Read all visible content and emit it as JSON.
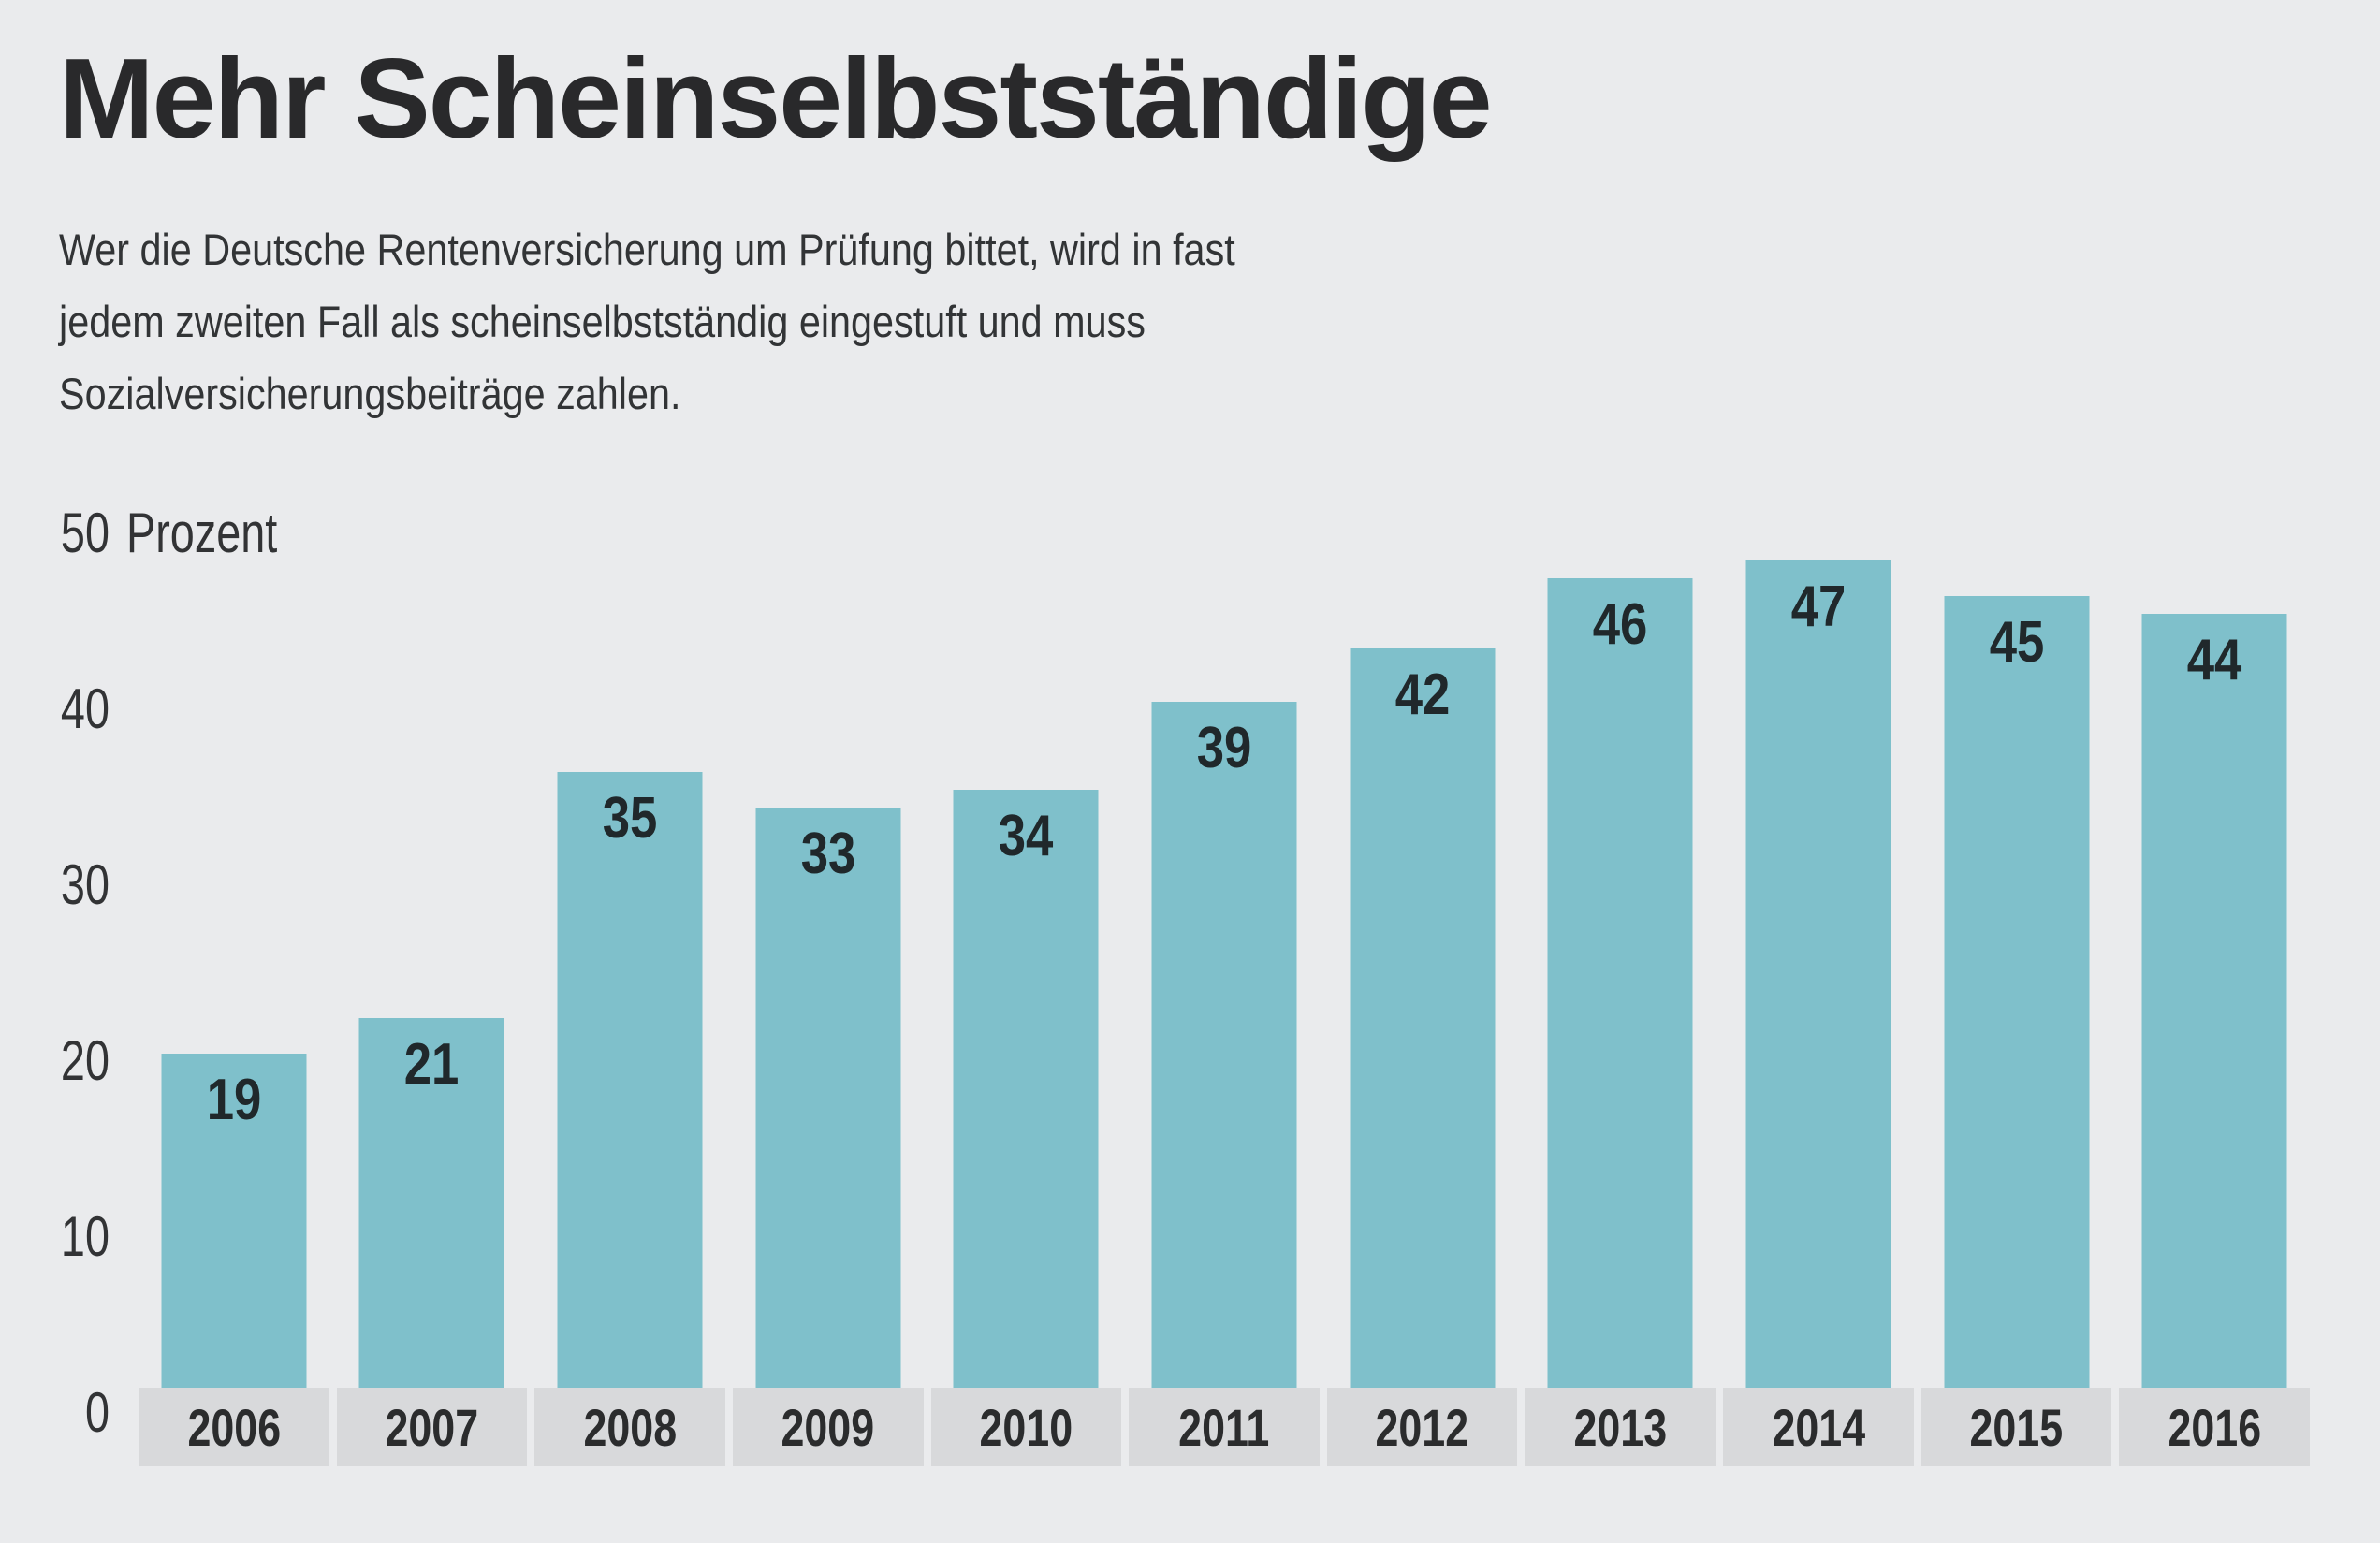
{
  "header": {
    "title": "Mehr Scheinselbstständige",
    "subtitle_lines": [
      "Wer die Deutsche Rentenversicherung um Prüfung bittet, wird in fast",
      "jedem zweiten Fall als scheinselbstständig eingestuft und muss",
      "Sozialversicherungsbeiträge zahlen."
    ]
  },
  "chart_data": {
    "type": "bar",
    "title": "Mehr Scheinselbstständige",
    "subtitle": "Wer die Deutsche Rentenversicherung um Prüfung bittet, wird in fast jedem zweiten Fall als scheinselbstständig eingestuft und muss Sozialversicherungsbeiträge zahlen.",
    "categories": [
      "2006",
      "2007",
      "2008",
      "2009",
      "2010",
      "2011",
      "2012",
      "2013",
      "2014",
      "2015",
      "2016"
    ],
    "values": [
      19,
      21,
      35,
      33,
      34,
      39,
      42,
      46,
      47,
      45,
      44
    ],
    "unit": "Prozent",
    "xlabel": "",
    "ylabel": "Prozent",
    "yticks": [
      0,
      10,
      20,
      30,
      40,
      50
    ],
    "ylim": [
      0,
      50
    ],
    "grid": false,
    "legend": "none",
    "value_labels": "inside-top",
    "bar_color": "#7fc0cb",
    "background_color": "#eaebed",
    "category_band_color": "#d8d9db",
    "text_color": "#2b2b2d"
  }
}
